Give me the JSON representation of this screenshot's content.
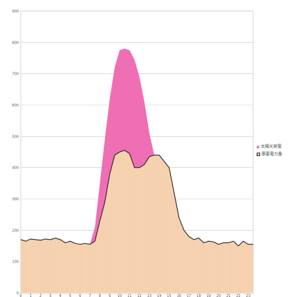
{
  "chart_data": {
    "type": "area",
    "title": "",
    "xlabel": "",
    "ylabel": "",
    "ylim": [
      0,
      900
    ],
    "yticks": [
      0,
      100,
      200,
      300,
      400,
      500,
      600,
      700,
      800,
      900
    ],
    "x": [
      0,
      0.5,
      1,
      1.5,
      2,
      2.5,
      3,
      3.5,
      4,
      4.5,
      5,
      5.5,
      6,
      6.5,
      7,
      7.5,
      8,
      8.5,
      9,
      9.5,
      10,
      10.5,
      11,
      11.5,
      12,
      12.5,
      13,
      13.5,
      14,
      14.5,
      15,
      15.5,
      16,
      16.5,
      17,
      17.5,
      18,
      18.5,
      19,
      19.5,
      20,
      20.5,
      21,
      21.5,
      22,
      22.5,
      23,
      23.5
    ],
    "xticks": [
      0,
      1,
      2,
      3,
      4,
      5,
      6,
      7,
      8,
      9,
      10,
      11,
      12,
      13,
      14,
      15,
      16,
      17,
      18,
      19,
      20,
      21,
      22,
      23
    ],
    "grid": true,
    "legend_position": "right",
    "series": [
      {
        "name": "太陽光発電",
        "color": "#f06eb4",
        "values": [
          0,
          0,
          0,
          0,
          0,
          0,
          0,
          0,
          0,
          0,
          0,
          0,
          0,
          30,
          100,
          210,
          350,
          490,
          620,
          720,
          775,
          780,
          775,
          745,
          690,
          610,
          510,
          410,
          300,
          200,
          110,
          60,
          15,
          0,
          0,
          0,
          0,
          0,
          0,
          0,
          0,
          0,
          0,
          0,
          0,
          0,
          0,
          0
        ]
      },
      {
        "name": "需要電力量",
        "color": "#f8d4b4",
        "values": [
          170,
          165,
          172,
          170,
          168,
          172,
          170,
          175,
          170,
          160,
          165,
          158,
          155,
          158,
          155,
          165,
          230,
          290,
          380,
          440,
          450,
          455,
          445,
          400,
          400,
          410,
          435,
          440,
          440,
          420,
          400,
          320,
          240,
          200,
          180,
          170,
          175,
          160,
          165,
          163,
          155,
          160,
          160,
          165,
          150,
          165,
          155,
          155
        ]
      }
    ]
  }
}
